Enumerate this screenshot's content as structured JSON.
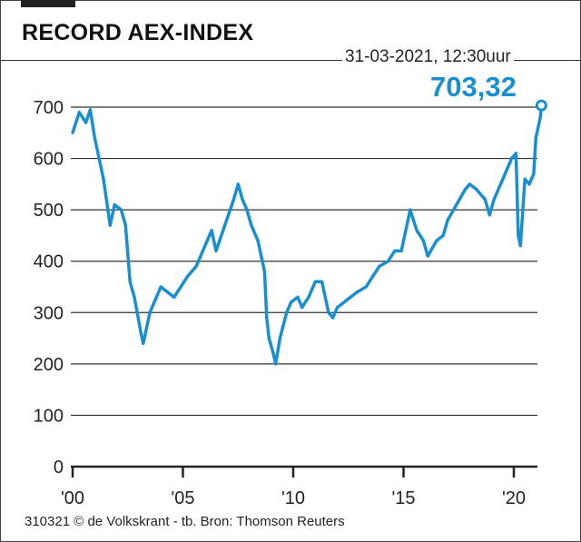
{
  "title": "RECORD AEX-INDEX",
  "timestamp": "31-03-2021, 12:30uur",
  "last_value_label": "703,32",
  "source": "310321 © de Volkskrant - tb. Bron: Thomson Reuters",
  "colors": {
    "line": "#1a8fd0",
    "grid": "#222222"
  },
  "chart_data": {
    "type": "line",
    "title": "RECORD AEX-INDEX",
    "xlabel": "",
    "ylabel": "",
    "xlim": [
      2000,
      2021.3
    ],
    "ylim": [
      0,
      700
    ],
    "grid": true,
    "y_ticks": [
      0,
      100,
      200,
      300,
      400,
      500,
      600,
      700
    ],
    "y_tick_labels": [
      "0",
      "100",
      "200",
      "300",
      "400",
      "500",
      "600",
      "700"
    ],
    "x_ticks": [
      2000,
      2005,
      2010,
      2015,
      2020
    ],
    "x_tick_labels": [
      "'00",
      "'05",
      "'10",
      "'15",
      "'20"
    ],
    "series": [
      {
        "name": "AEX",
        "x": [
          2000.0,
          2000.3,
          2000.6,
          2000.8,
          2001.0,
          2001.2,
          2001.4,
          2001.7,
          2001.9,
          2002.2,
          2002.4,
          2002.6,
          2002.8,
          2003.1,
          2003.2,
          2003.5,
          2003.8,
          2004.0,
          2004.3,
          2004.6,
          2004.9,
          2005.2,
          2005.6,
          2005.9,
          2006.3,
          2006.5,
          2006.9,
          2007.3,
          2007.5,
          2007.7,
          2007.9,
          2008.1,
          2008.4,
          2008.7,
          2008.8,
          2008.9,
          2009.1,
          2009.2,
          2009.4,
          2009.7,
          2009.9,
          2010.2,
          2010.4,
          2010.7,
          2011.0,
          2011.3,
          2011.6,
          2011.8,
          2012.0,
          2012.3,
          2012.6,
          2012.9,
          2013.3,
          2013.6,
          2013.9,
          2014.3,
          2014.6,
          2014.9,
          2015.2,
          2015.3,
          2015.6,
          2015.9,
          2016.1,
          2016.5,
          2016.8,
          2017.0,
          2017.4,
          2017.8,
          2018.0,
          2018.3,
          2018.7,
          2018.9,
          2019.1,
          2019.5,
          2019.9,
          2020.1,
          2020.2,
          2020.3,
          2020.5,
          2020.7,
          2020.9,
          2021.0,
          2021.2,
          2021.25
        ],
        "values": [
          650,
          690,
          670,
          695,
          640,
          600,
          560,
          470,
          510,
          500,
          470,
          360,
          330,
          260,
          240,
          300,
          330,
          350,
          340,
          330,
          350,
          370,
          390,
          420,
          460,
          420,
          470,
          520,
          550,
          520,
          500,
          470,
          440,
          380,
          290,
          250,
          220,
          200,
          250,
          300,
          320,
          330,
          310,
          330,
          360,
          360,
          300,
          290,
          310,
          320,
          330,
          340,
          350,
          370,
          390,
          400,
          420,
          420,
          480,
          500,
          460,
          440,
          410,
          440,
          450,
          480,
          510,
          540,
          550,
          540,
          520,
          490,
          520,
          560,
          600,
          610,
          450,
          430,
          560,
          550,
          570,
          640,
          680,
          703.32
        ]
      }
    ],
    "annotations": [
      {
        "label": "703,32",
        "x": 2021.25,
        "y": 703.32
      }
    ]
  }
}
